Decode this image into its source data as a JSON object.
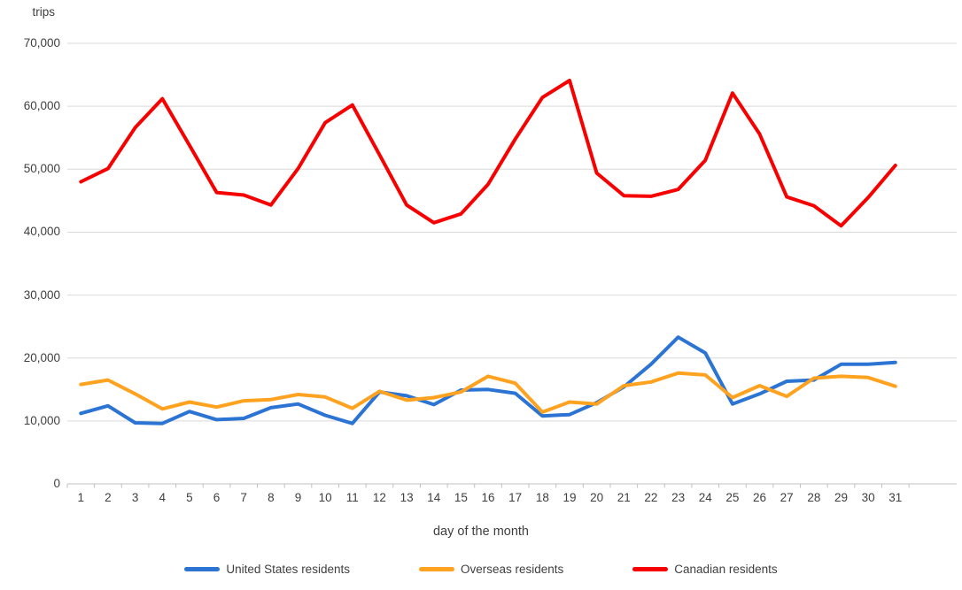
{
  "chart_data": {
    "type": "line",
    "y_unit_label": "trips",
    "xlabel": "day of the month",
    "categories": [
      1,
      2,
      3,
      4,
      5,
      6,
      7,
      8,
      9,
      10,
      11,
      12,
      13,
      14,
      15,
      16,
      17,
      18,
      19,
      20,
      21,
      22,
      23,
      24,
      25,
      26,
      27,
      28,
      29,
      30,
      31
    ],
    "ylim": [
      0,
      70000
    ],
    "y_tick_step": 10000,
    "y_tick_labels": [
      "0",
      "10,000",
      "20,000",
      "30,000",
      "40,000",
      "50,000",
      "60,000",
      "70,000"
    ],
    "grid": "horizontal",
    "legend_position": "bottom",
    "colors": {
      "grid": "#d9d9d9",
      "axis": "#c0c0c0",
      "text": "#3f3f3f"
    },
    "series": [
      {
        "name": "United States residents",
        "color": "#2b74d4",
        "values": [
          11200,
          12400,
          9700,
          9600,
          11500,
          10200,
          10400,
          12100,
          12700,
          10900,
          9600,
          14600,
          14000,
          12600,
          14900,
          15000,
          14400,
          10800,
          11000,
          12900,
          15400,
          19000,
          23300,
          20800,
          12700,
          14300,
          16300,
          16500,
          19000,
          19000,
          19300
        ]
      },
      {
        "name": "Overseas residents",
        "color": "#ffa220",
        "values": [
          15800,
          16500,
          14300,
          11900,
          13000,
          12200,
          13200,
          13400,
          14200,
          13800,
          12000,
          14700,
          13300,
          13700,
          14600,
          17100,
          16000,
          11400,
          13000,
          12700,
          15600,
          16200,
          17600,
          17300,
          13700,
          15600,
          13900,
          16800,
          17100,
          16900,
          15500
        ]
      },
      {
        "name": "Canadian residents",
        "color": "#f70000",
        "values": [
          48000,
          50100,
          56600,
          61200,
          53800,
          46300,
          45900,
          44300,
          50100,
          57400,
          60200,
          52300,
          44300,
          41500,
          42900,
          47600,
          54800,
          61400,
          64100,
          49400,
          45800,
          45700,
          46800,
          51400,
          62100,
          55600,
          45600,
          44200,
          41000,
          45500,
          50600
        ]
      }
    ]
  }
}
